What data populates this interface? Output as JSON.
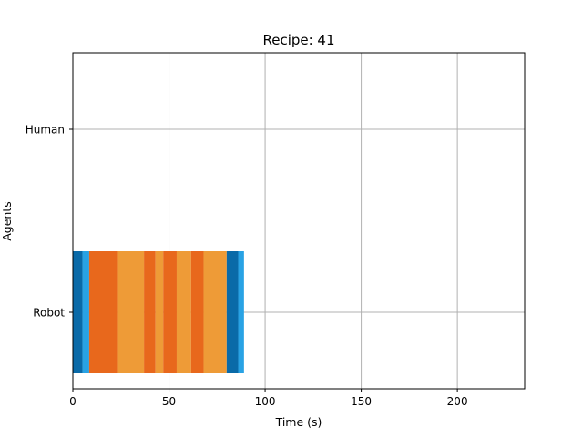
{
  "chart_data": {
    "type": "gantt",
    "title": "Recipe: 41",
    "xlabel": "Time (s)",
    "ylabel": "Agents",
    "xlim": [
      0,
      235
    ],
    "xticks": [
      0,
      50,
      100,
      150,
      200
    ],
    "categories": [
      "Robot",
      "Human"
    ],
    "grid": true,
    "legend": "none",
    "bars": [
      {
        "agent": "Robot",
        "start": 0,
        "end": 5,
        "color": "#0a6aa8"
      },
      {
        "agent": "Robot",
        "start": 5,
        "end": 8.5,
        "color": "#29a2e4"
      },
      {
        "agent": "Robot",
        "start": 8.5,
        "end": 23,
        "color": "#e8681c"
      },
      {
        "agent": "Robot",
        "start": 23,
        "end": 37,
        "color": "#ee9b37"
      },
      {
        "agent": "Robot",
        "start": 37,
        "end": 43,
        "color": "#e8681c"
      },
      {
        "agent": "Robot",
        "start": 43,
        "end": 47,
        "color": "#ee9b37"
      },
      {
        "agent": "Robot",
        "start": 47,
        "end": 54,
        "color": "#e8681c"
      },
      {
        "agent": "Robot",
        "start": 54,
        "end": 61.5,
        "color": "#ee9b37"
      },
      {
        "agent": "Robot",
        "start": 61.5,
        "end": 68,
        "color": "#e8681c"
      },
      {
        "agent": "Robot",
        "start": 68,
        "end": 80,
        "color": "#ee9b37"
      },
      {
        "agent": "Robot",
        "start": 80,
        "end": 86,
        "color": "#0a6aa8"
      },
      {
        "agent": "Robot",
        "start": 86,
        "end": 89,
        "color": "#29a2e4"
      }
    ]
  }
}
